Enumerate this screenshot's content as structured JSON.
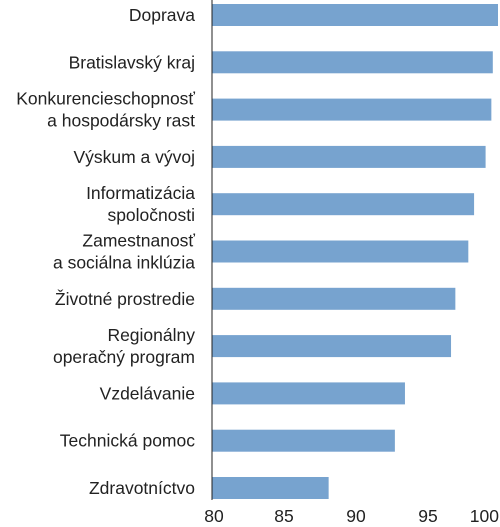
{
  "chart_data": {
    "type": "bar",
    "orientation": "horizontal",
    "categories": [
      [
        "Doprava"
      ],
      [
        "Bratislavský kraj"
      ],
      [
        "Konkurencieschopnosť",
        "a hospodársky rast"
      ],
      [
        "Výskum a vývoj"
      ],
      [
        "Informatizácia",
        "spoločnosti"
      ],
      [
        "Zamestnanosť",
        "a sociálna inklúzia"
      ],
      [
        "Životné prostredie"
      ],
      [
        "Regionálny",
        "operačný program"
      ],
      [
        "Vzdelávanie"
      ],
      [
        "Technická pomoc"
      ],
      [
        "Zdravotníctvo"
      ]
    ],
    "values": [
      100.3,
      99.5,
      99.4,
      99.0,
      98.2,
      97.8,
      96.9,
      96.6,
      93.4,
      92.7,
      88.1
    ],
    "xlim": [
      80,
      100
    ],
    "xticks": [
      "80",
      "85",
      "90",
      "95",
      "100"
    ],
    "title": "",
    "xlabel": "",
    "ylabel": "",
    "grid": false,
    "bar_color": "#77a3cf"
  }
}
